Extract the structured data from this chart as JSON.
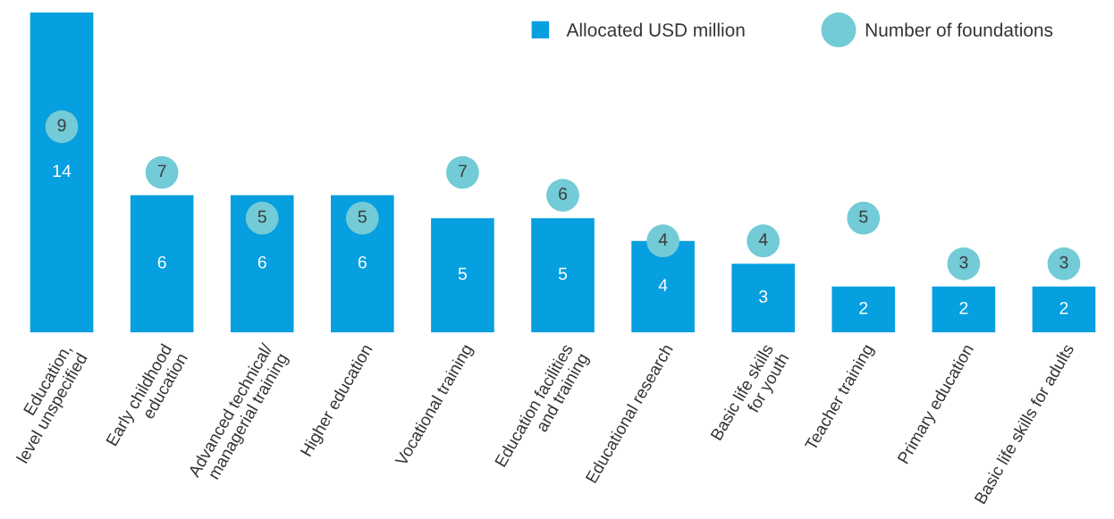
{
  "chart_data": {
    "type": "bar",
    "categories": [
      "Education,\nlevel unspecified",
      "Early childhood\neducation",
      "Advanced technical/\nmanagerial training",
      "Higher education",
      "Vocational training",
      "Education facilities\nand training",
      "Educational research",
      "Basic life skills\nfor youth",
      "Teacher training",
      "Primary education",
      "Basic life skills for adults"
    ],
    "series": [
      {
        "name": "Allocated USD million",
        "color": "#069fdf",
        "values": [
          14,
          6,
          6,
          6,
          5,
          5,
          4,
          3,
          2,
          2,
          2
        ]
      },
      {
        "name": "Number of foundations",
        "type": "scatter",
        "color": "#72cbd6",
        "values": [
          9,
          7,
          5,
          5,
          7,
          6,
          4,
          4,
          5,
          3,
          3
        ]
      }
    ],
    "data_labels": true,
    "marker": "circle",
    "legend": "top right",
    "grid": false
  }
}
